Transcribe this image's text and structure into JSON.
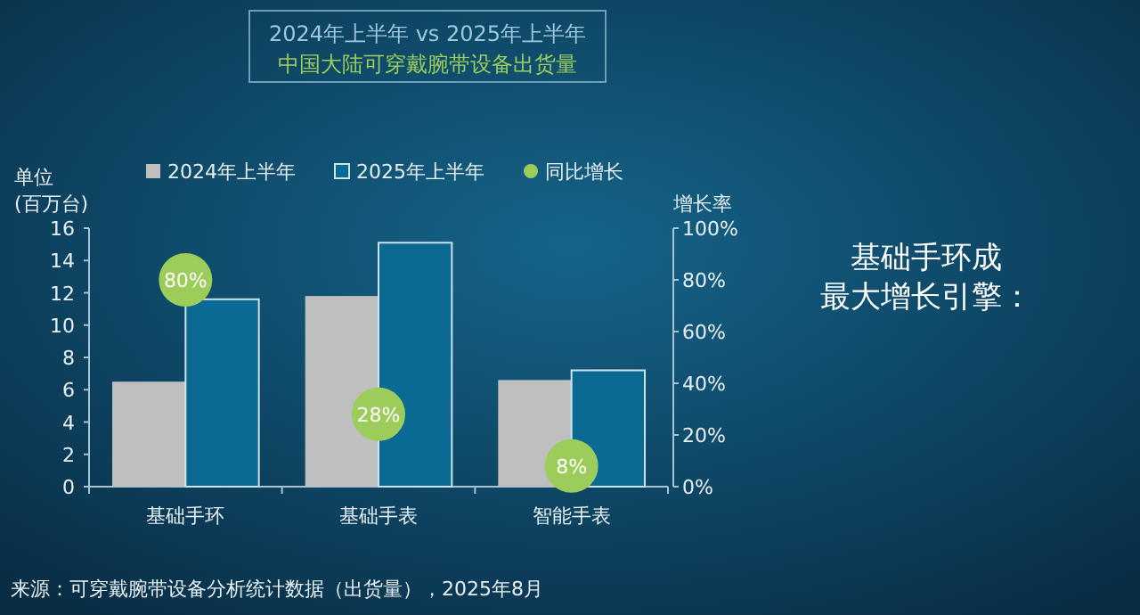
{
  "chart_data": {
    "type": "bar",
    "title": "2024年上半年 vs 2025年上半年",
    "subtitle": "中国大陆可穿戴腕带设备出货量",
    "ylabel": "单位\n(百万台)",
    "y2label": "增长率",
    "categories": [
      "基础手环",
      "基础手表",
      "智能手表"
    ],
    "series": [
      {
        "name": "2024年上半年",
        "color": "#bfbfbf",
        "values": [
          6.5,
          11.8,
          6.6
        ]
      },
      {
        "name": "2025年上半年",
        "color": "#0b6a93",
        "values": [
          11.6,
          15.1,
          7.2
        ]
      },
      {
        "name": "同比增长",
        "type": "scatter",
        "axis": "y2",
        "color": "#9ccc5a",
        "values": [
          80,
          28,
          8
        ],
        "value_labels": [
          "80%",
          "28%",
          "8%"
        ]
      }
    ],
    "ylim": [
      0,
      16
    ],
    "yticks": [
      0,
      2,
      4,
      6,
      8,
      10,
      12,
      14,
      16
    ],
    "y2lim": [
      0,
      100
    ],
    "y2ticks": [
      {
        "value": 0,
        "label": "0%"
      },
      {
        "value": 20,
        "label": "20%"
      },
      {
        "value": 40,
        "label": "40%"
      },
      {
        "value": 60,
        "label": "60%"
      },
      {
        "value": 80,
        "label": "80%"
      },
      {
        "value": 100,
        "label": "100%"
      }
    ],
    "legend": "top",
    "grid": false,
    "annotations": [
      "基础手环成",
      "最大增长引擎：",
      "来源：可穿戴腕带设备分析统计数据（出货量），2025年8月"
    ]
  }
}
